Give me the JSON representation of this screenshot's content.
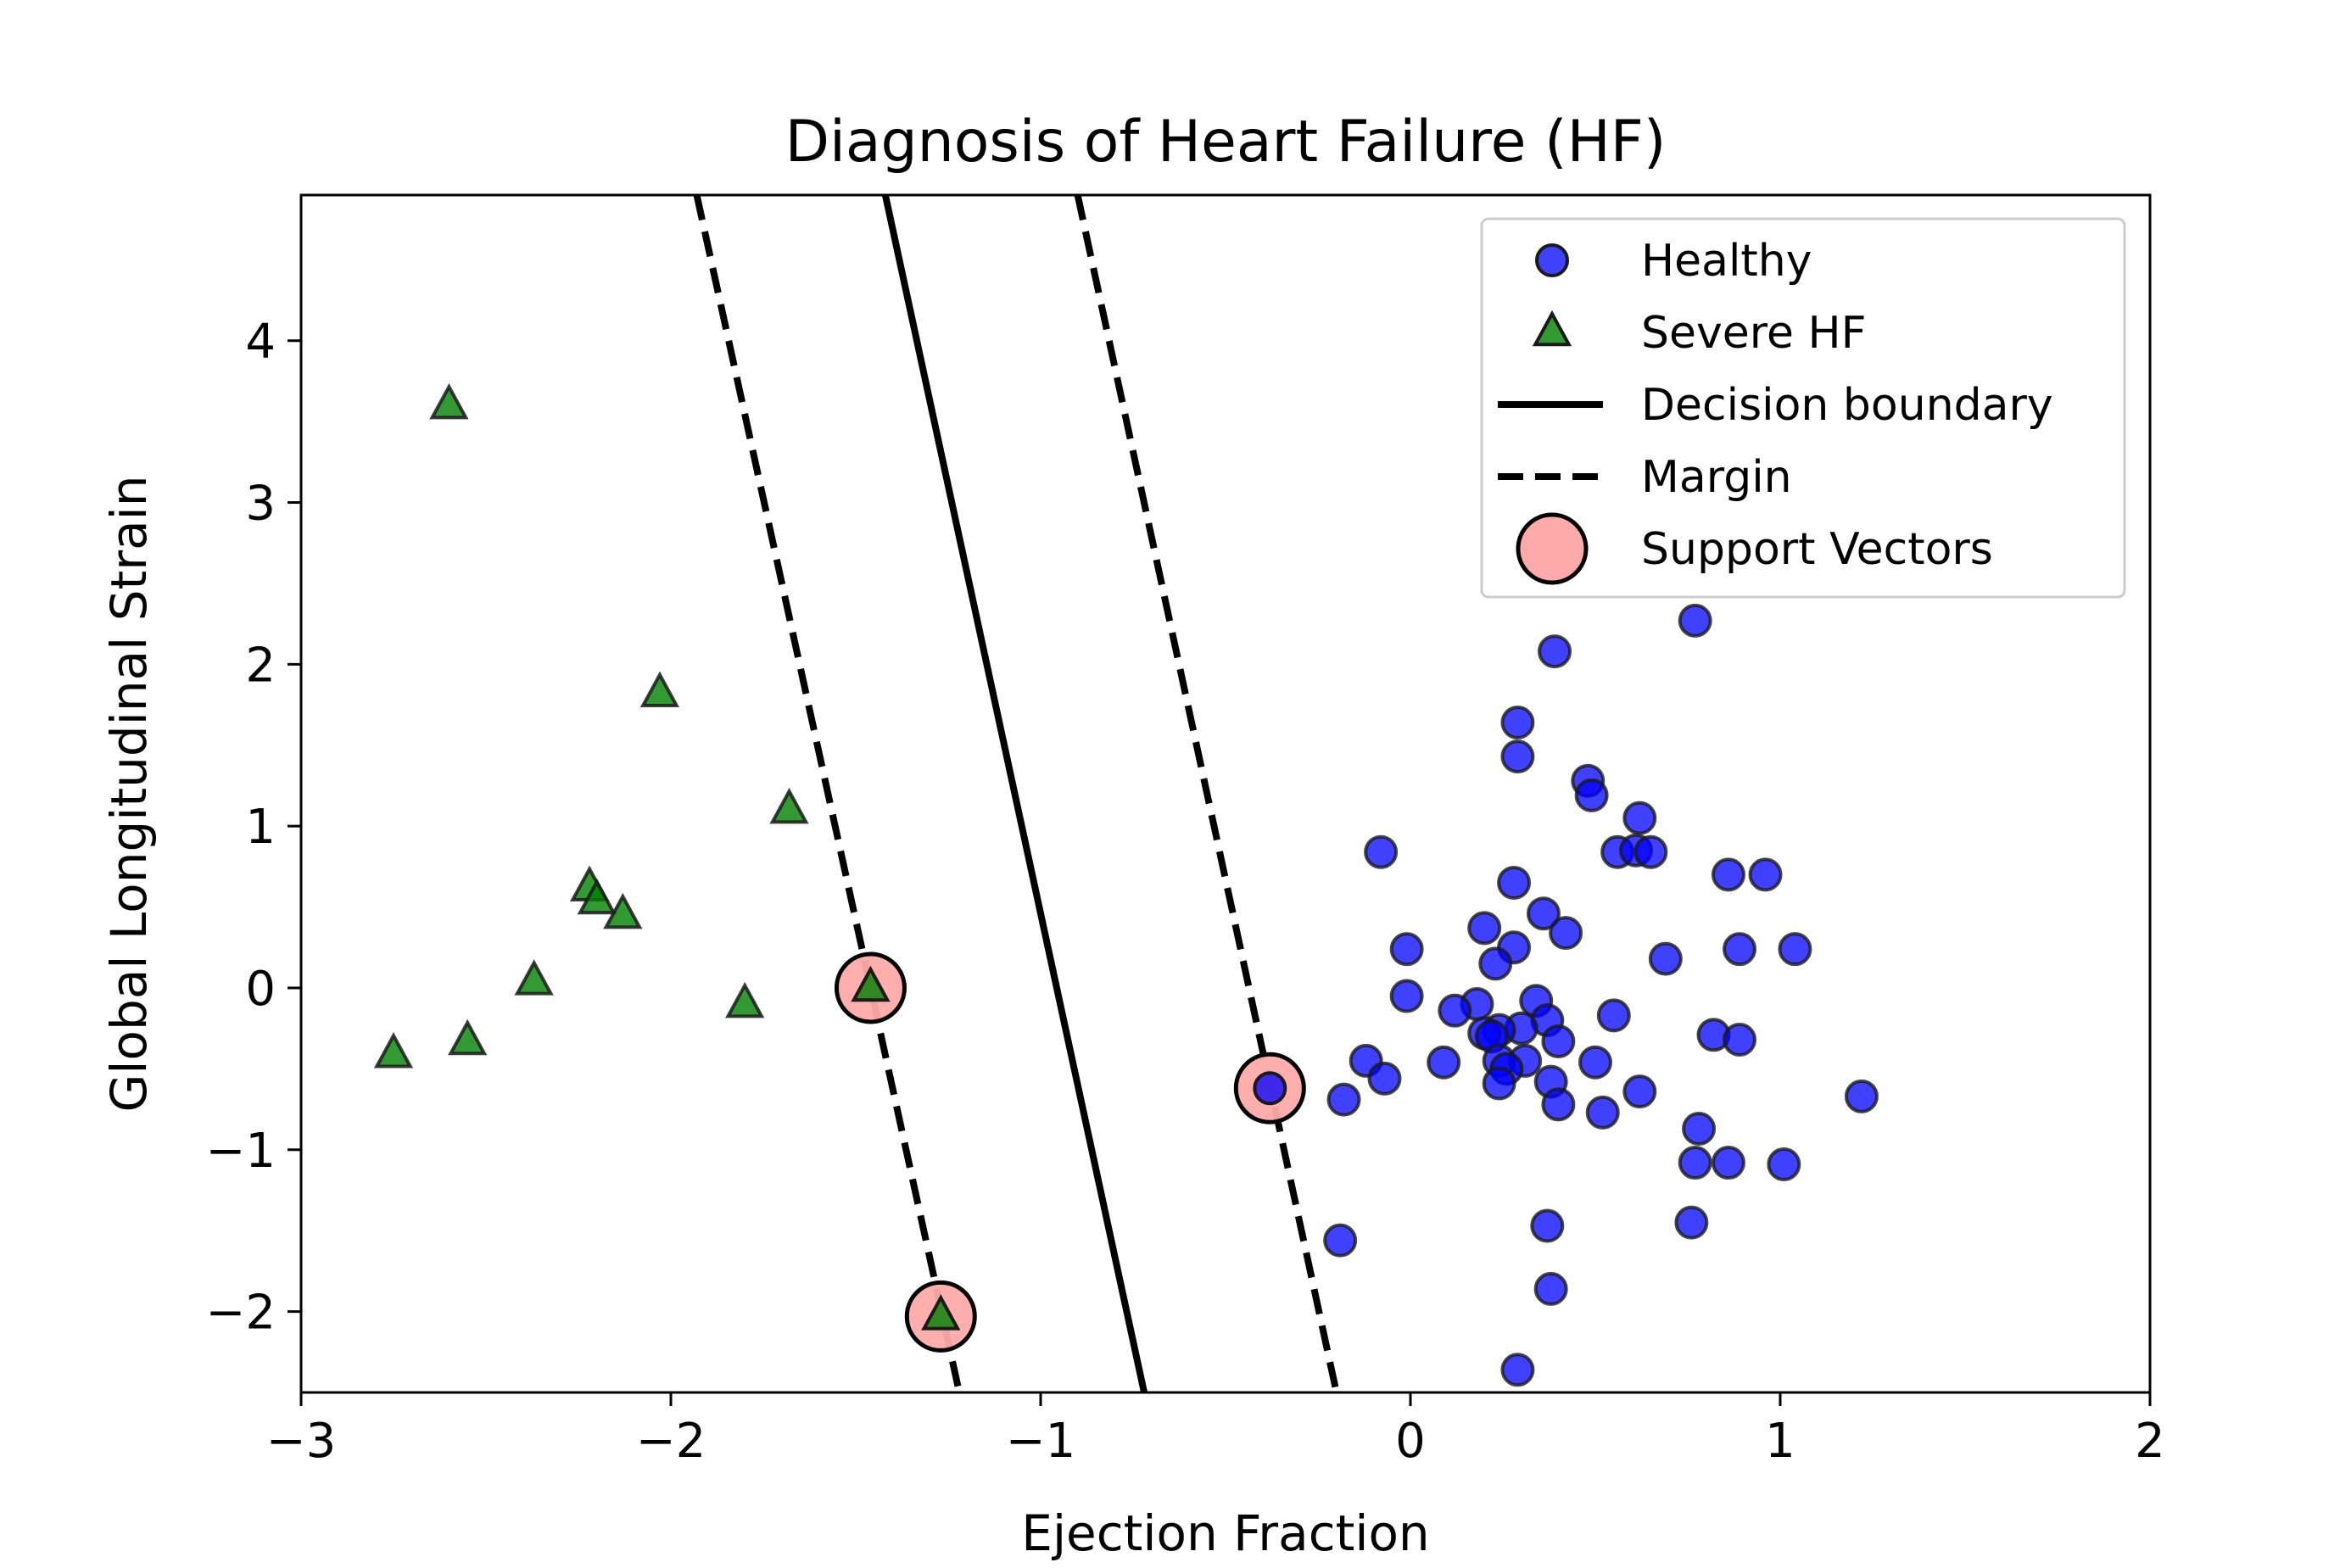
{
  "chart_data": {
    "type": "scatter",
    "title": "Diagnosis of Heart Failure (HF)",
    "xlabel": "Ejection Fraction",
    "ylabel": "Global Longitudinal Strain",
    "xlim": [
      -3,
      2
    ],
    "ylim": [
      -2.5,
      4.9
    ],
    "x_ticks": [
      -3,
      -2,
      -1,
      0,
      1,
      2
    ],
    "x_tick_labels": [
      "−3",
      "−2",
      "−1",
      "0",
      "1",
      "2"
    ],
    "y_ticks": [
      -2,
      -1,
      0,
      1,
      2,
      3,
      4
    ],
    "y_tick_labels": [
      "−2",
      "−1",
      "0",
      "1",
      "2",
      "3",
      "4"
    ],
    "grid": false,
    "legend_position": "top-right",
    "series": [
      {
        "name": "Healthy",
        "marker": "circle",
        "color": "#0000ff",
        "points": [
          [
            0.77,
            2.27
          ],
          [
            0.39,
            2.08
          ],
          [
            0.29,
            1.64
          ],
          [
            0.29,
            1.43
          ],
          [
            0.48,
            1.28
          ],
          [
            0.49,
            1.19
          ],
          [
            0.62,
            1.05
          ],
          [
            0.56,
            0.84
          ],
          [
            0.61,
            0.85
          ],
          [
            0.65,
            0.84
          ],
          [
            -0.08,
            0.84
          ],
          [
            0.86,
            0.7
          ],
          [
            0.96,
            0.7
          ],
          [
            0.28,
            0.65
          ],
          [
            0.36,
            0.46
          ],
          [
            0.2,
            0.37
          ],
          [
            0.42,
            0.34
          ],
          [
            0.28,
            0.25
          ],
          [
            -0.01,
            0.24
          ],
          [
            0.89,
            0.24
          ],
          [
            1.04,
            0.24
          ],
          [
            0.69,
            0.18
          ],
          [
            0.23,
            0.15
          ],
          [
            -0.01,
            -0.05
          ],
          [
            0.34,
            -0.08
          ],
          [
            0.18,
            -0.1
          ],
          [
            0.12,
            -0.14
          ],
          [
            0.37,
            -0.2
          ],
          [
            0.55,
            -0.17
          ],
          [
            0.3,
            -0.25
          ],
          [
            0.24,
            -0.26
          ],
          [
            0.2,
            -0.28
          ],
          [
            0.22,
            -0.3
          ],
          [
            0.82,
            -0.29
          ],
          [
            0.89,
            -0.32
          ],
          [
            0.4,
            -0.33
          ],
          [
            -0.12,
            -0.45
          ],
          [
            0.09,
            -0.46
          ],
          [
            0.24,
            -0.45
          ],
          [
            0.31,
            -0.45
          ],
          [
            0.5,
            -0.46
          ],
          [
            0.26,
            -0.5
          ],
          [
            -0.07,
            -0.56
          ],
          [
            0.24,
            -0.59
          ],
          [
            0.38,
            -0.58
          ],
          [
            0.62,
            -0.64
          ],
          [
            -0.18,
            -0.69
          ],
          [
            0.4,
            -0.72
          ],
          [
            0.52,
            -0.77
          ],
          [
            1.22,
            -0.67
          ],
          [
            0.78,
            -0.87
          ],
          [
            0.77,
            -1.08
          ],
          [
            0.86,
            -1.08
          ],
          [
            1.01,
            -1.09
          ],
          [
            0.37,
            -1.47
          ],
          [
            0.76,
            -1.45
          ],
          [
            -0.19,
            -1.56
          ],
          [
            0.38,
            -1.86
          ],
          [
            0.29,
            -2.36
          ],
          [
            -0.38,
            -0.62
          ]
        ]
      },
      {
        "name": "Severe HF",
        "marker": "triangle",
        "color": "#008000",
        "points": [
          [
            -2.6,
            3.6
          ],
          [
            -2.03,
            1.82
          ],
          [
            -1.68,
            1.1
          ],
          [
            -2.22,
            0.62
          ],
          [
            -2.2,
            0.54
          ],
          [
            -2.13,
            0.45
          ],
          [
            -2.37,
            0.04
          ],
          [
            -1.8,
            -0.1
          ],
          [
            -1.46,
            0.0
          ],
          [
            -2.75,
            -0.41
          ],
          [
            -2.55,
            -0.33
          ],
          [
            -1.27,
            -2.03
          ]
        ]
      },
      {
        "name": "Support Vectors",
        "marker": "ring",
        "color": "#ffaaaa",
        "points": [
          [
            -1.46,
            0.0
          ],
          [
            -1.27,
            -2.03
          ],
          [
            -0.38,
            -0.62
          ]
        ]
      }
    ],
    "lines": [
      {
        "name": "Decision boundary",
        "style": "solid",
        "color": "#000000",
        "points": [
          [
            -1.42,
            4.9
          ],
          [
            -0.72,
            -2.5
          ]
        ]
      },
      {
        "name": "Margin",
        "style": "dashed",
        "color": "#000000",
        "points": [
          [
            -1.93,
            4.9
          ],
          [
            -1.22,
            -2.5
          ]
        ]
      },
      {
        "name": "Margin",
        "style": "dashed",
        "color": "#000000",
        "points": [
          [
            -0.9,
            4.9
          ],
          [
            -0.2,
            -2.5
          ]
        ]
      }
    ],
    "legend": [
      {
        "label": "Healthy",
        "kind": "circle",
        "color": "#0000ff"
      },
      {
        "label": "Severe HF",
        "kind": "triangle",
        "color": "#008000"
      },
      {
        "label": "Decision boundary",
        "kind": "solid-line",
        "color": "#000000"
      },
      {
        "label": "Margin",
        "kind": "dashed-line",
        "color": "#000000"
      },
      {
        "label": "Support Vectors",
        "kind": "ring",
        "color": "#ffaaaa"
      }
    ]
  }
}
